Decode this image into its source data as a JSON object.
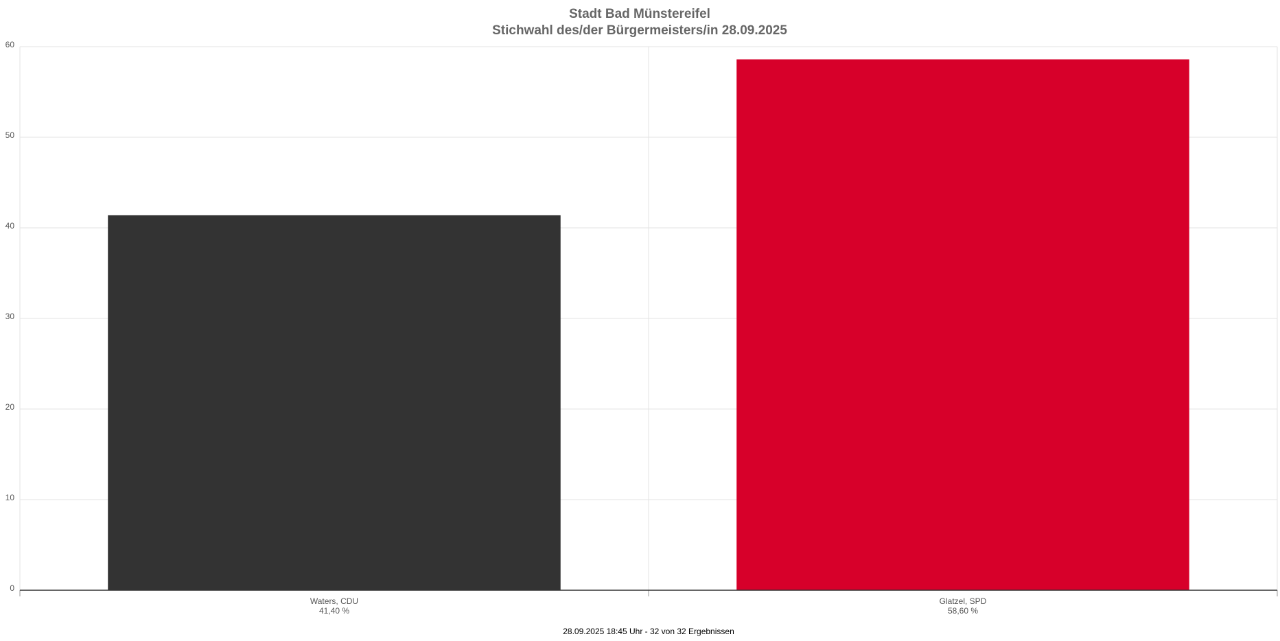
{
  "chart_data": {
    "type": "bar",
    "title": "Stadt Bad Münstereifel",
    "subtitle": "Stichwahl des/der Bürgermeisters/in 28.09.2025",
    "categories": [
      "Waters, CDU",
      "Glatzel, SPD"
    ],
    "values": [
      41.4,
      58.6
    ],
    "value_labels": [
      "41,40 %",
      "58,60 %"
    ],
    "colors": [
      "#333333",
      "#d7002a"
    ],
    "ylim": [
      0,
      60
    ],
    "yticks": [
      0,
      10,
      20,
      30,
      40,
      50,
      60
    ],
    "grid": true,
    "footer": "28.09.2025 18:45 Uhr - 32 von 32 Ergebnissen"
  }
}
